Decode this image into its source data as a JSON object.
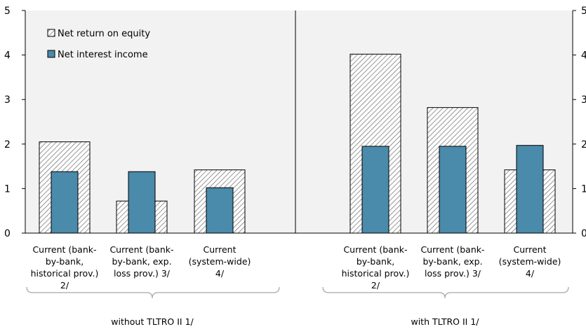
{
  "chart_data": {
    "type": "bar",
    "ylim": [
      0,
      5
    ],
    "yticks": [
      0,
      1,
      2,
      3,
      4,
      5
    ],
    "grid": false,
    "legend_position": "top-left",
    "categories": [
      [
        "Current (bank-",
        "by-bank,",
        "historical prov.)",
        "2/"
      ],
      [
        "Current (bank-",
        "by-bank, exp.",
        "loss prov.) 3/"
      ],
      [
        "Current",
        "(system-wide)",
        "4/"
      ],
      [
        "Current (bank-",
        "by-bank,",
        "historical prov.)",
        "2/"
      ],
      [
        "Current (bank-",
        "by-bank, exp.",
        "loss prov.) 3/"
      ],
      [
        "Current",
        "(system-wide)",
        "4/"
      ]
    ],
    "groups": [
      {
        "label": "without  TLTRO II 1/",
        "categories": [
          0,
          1,
          2
        ]
      },
      {
        "label": "with  TLTRO II 1/",
        "categories": [
          3,
          4,
          5
        ]
      }
    ],
    "series": [
      {
        "name": "Net return on equity",
        "values": [
          2.05,
          0.72,
          1.42,
          4.02,
          2.82,
          1.42
        ],
        "color": "#ffffff",
        "pattern": "diagonal-hatch"
      },
      {
        "name": "Net interest income",
        "values": [
          1.38,
          1.38,
          1.02,
          1.95,
          1.95,
          1.97
        ],
        "color": "#4a8aaa"
      }
    ]
  }
}
